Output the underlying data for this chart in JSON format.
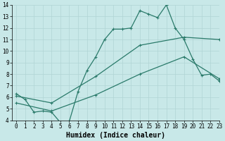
{
  "bg_color": "#c8e8e8",
  "line_color": "#2a7a6a",
  "grid_color": "#b0d4d4",
  "xlabel": "Humidex (Indice chaleur)",
  "xlim": [
    -0.5,
    23
  ],
  "ylim": [
    4,
    14
  ],
  "yticks": [
    4,
    5,
    6,
    7,
    8,
    9,
    10,
    11,
    12,
    13,
    14
  ],
  "xticks": [
    0,
    1,
    2,
    3,
    4,
    5,
    6,
    7,
    8,
    9,
    10,
    11,
    12,
    13,
    14,
    15,
    16,
    17,
    18,
    19,
    20,
    21,
    22,
    23
  ],
  "zigzag_x": [
    0,
    1,
    2,
    3,
    4,
    5,
    6,
    7,
    8,
    9,
    10,
    11,
    12,
    13,
    14,
    15,
    16,
    17,
    18,
    19,
    20,
    21,
    22,
    23
  ],
  "zigzag_y": [
    6.3,
    5.8,
    4.7,
    4.8,
    4.7,
    3.8,
    3.9,
    6.5,
    8.3,
    9.5,
    11.0,
    11.9,
    11.9,
    12.0,
    13.5,
    13.2,
    12.9,
    14.0,
    12.0,
    11.0,
    9.3,
    7.9,
    8.0,
    7.4
  ],
  "line2_x": [
    0,
    4,
    9,
    14,
    19,
    23
  ],
  "line2_y": [
    6.1,
    5.5,
    7.8,
    10.5,
    11.2,
    11.0
  ],
  "line3_x": [
    0,
    4,
    9,
    14,
    19,
    23
  ],
  "line3_y": [
    5.5,
    4.8,
    6.2,
    8.0,
    9.5,
    7.6
  ],
  "fontsize_ticks": 5.5,
  "fontsize_xlabel": 7.0
}
